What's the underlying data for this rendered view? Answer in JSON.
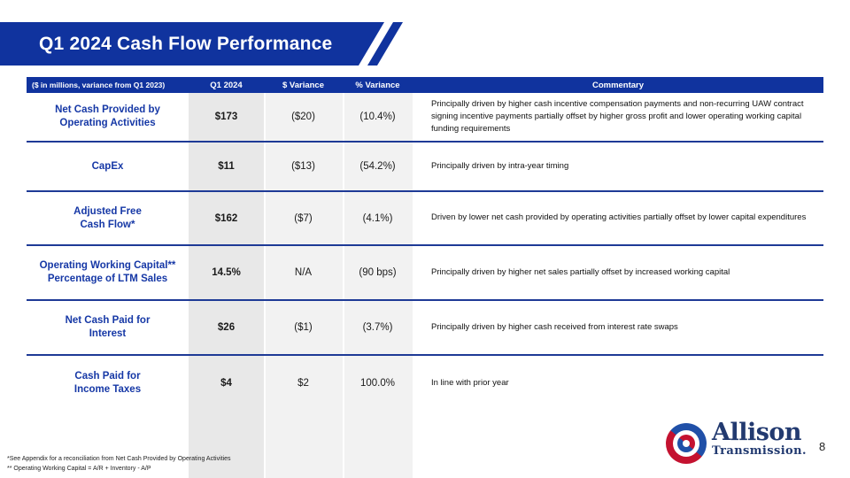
{
  "slide": {
    "title": "Q1 2024 Cash Flow Performance",
    "page_number": "8",
    "footnote1": "*See Appendix for a reconciliation from Net Cash Provided by Operating Activities",
    "footnote2": "** Operating Working Capital = A/R + Inventory - A/P"
  },
  "table": {
    "header": {
      "units_label": "($ in millions, variance from Q1 2023)",
      "columns": [
        "Q1 2024",
        "$ Variance",
        "% Variance",
        "Commentary"
      ]
    },
    "rows": [
      {
        "label": "Net Cash Provided by\nOperating Activities",
        "q1_2024": "$173",
        "dollar_variance": "($20)",
        "pct_variance": "(10.4%)",
        "commentary": "Principally driven by higher cash incentive compensation payments and non-recurring UAW contract signing incentive payments partially offset by higher gross profit and lower operating working capital funding requirements"
      },
      {
        "label": "CapEx",
        "q1_2024": "$11",
        "dollar_variance": "($13)",
        "pct_variance": "(54.2%)",
        "commentary": "Principally driven by intra-year timing"
      },
      {
        "label": "Adjusted Free\nCash Flow*",
        "q1_2024": "$162",
        "dollar_variance": "($7)",
        "pct_variance": "(4.1%)",
        "commentary": "Driven by lower net cash provided by operating activities partially offset by lower capital expenditures"
      },
      {
        "label": "Operating Working Capital**\nPercentage of LTM Sales",
        "q1_2024": "14.5%",
        "dollar_variance": "N/A",
        "pct_variance": "(90 bps)",
        "commentary": "Principally driven by higher net sales partially offset by increased working capital"
      },
      {
        "label": "Net Cash Paid for\nInterest",
        "q1_2024": "$26",
        "dollar_variance": "($1)",
        "pct_variance": "(3.7%)",
        "commentary": "Principally driven by higher cash received from interest rate swaps"
      },
      {
        "label": "Cash Paid for\nIncome Taxes",
        "q1_2024": "$4",
        "dollar_variance": "$2",
        "pct_variance": "100.0%",
        "commentary": "In line with prior year"
      }
    ]
  },
  "logo": {
    "line1": "Allison",
    "line2": "Transmission."
  },
  "colors": {
    "accent_blue": "#10339E",
    "line_blue": "#1E3A96",
    "label_blue": "#1638A6",
    "col_gray_dark": "#E8E8E8",
    "col_gray_light": "#F2F2F2",
    "logo_navy": "#223A70",
    "logo_blue": "#2050A8",
    "logo_red": "#C41230"
  }
}
